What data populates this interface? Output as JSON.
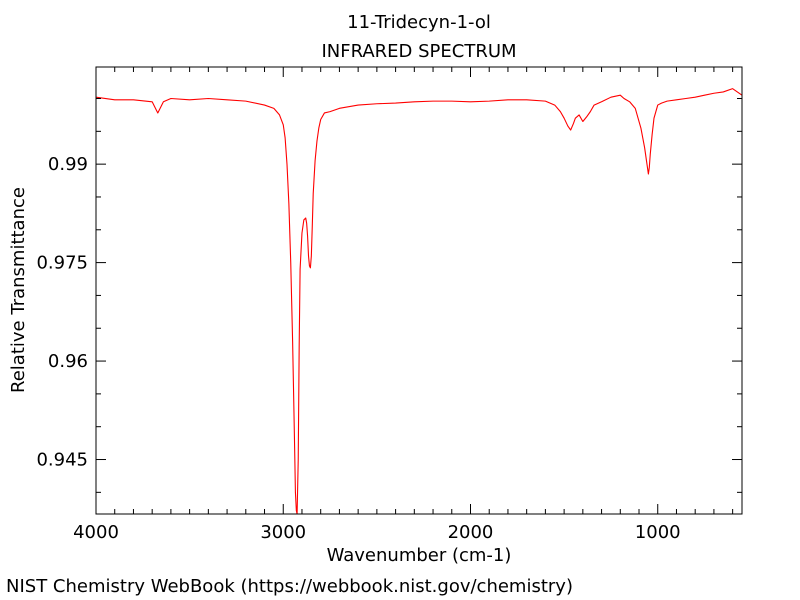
{
  "credit": "NIST Chemistry WebBook (https://webbook.nist.gov/chemistry)",
  "chart_data": {
    "type": "line",
    "title": "11-Tridecyn-1-ol",
    "subtitle": "INFRARED SPECTRUM",
    "xlabel": "Wavenumber (cm-1)",
    "ylabel": "Relative Transmittance",
    "xlim": [
      4000,
      550
    ],
    "ylim": [
      0.9367,
      1.0048
    ],
    "x_ticks": [
      4000,
      3000,
      2000,
      1000
    ],
    "y_ticks": [
      0.99,
      0.975,
      0.96,
      0.945
    ],
    "x_tick_labels": [
      "4000",
      "3000",
      "2000",
      "1000"
    ],
    "y_tick_labels": [
      "0.99",
      "0.975",
      "0.96",
      "0.945"
    ],
    "grid": false,
    "color": "#ff0000",
    "series": [
      {
        "x": [
          4000,
          3900,
          3800,
          3700,
          3670,
          3640,
          3600,
          3500,
          3400,
          3300,
          3200,
          3100,
          3050,
          3020,
          3000,
          2990,
          2980,
          2970,
          2960,
          2950,
          2940,
          2935,
          2930,
          2926,
          2920,
          2915,
          2910,
          2900,
          2890,
          2880,
          2875,
          2870,
          2865,
          2860,
          2855,
          2850,
          2845,
          2840,
          2830,
          2820,
          2810,
          2800,
          2780,
          2750,
          2700,
          2600,
          2500,
          2400,
          2300,
          2200,
          2100,
          2000,
          1900,
          1800,
          1700,
          1600,
          1550,
          1520,
          1500,
          1480,
          1465,
          1450,
          1440,
          1420,
          1400,
          1380,
          1360,
          1340,
          1300,
          1250,
          1200,
          1180,
          1150,
          1120,
          1100,
          1090,
          1080,
          1070,
          1060,
          1055,
          1050,
          1045,
          1040,
          1030,
          1020,
          1000,
          980,
          950,
          900,
          850,
          800,
          750,
          700,
          650,
          600,
          550
        ],
        "y": [
          1.0002,
          0.9998,
          0.9998,
          0.9995,
          0.9978,
          0.9995,
          1.0,
          0.9998,
          1.0,
          0.9998,
          0.9996,
          0.999,
          0.9985,
          0.9975,
          0.996,
          0.994,
          0.99,
          0.984,
          0.975,
          0.963,
          0.948,
          0.94,
          0.9372,
          0.9367,
          0.945,
          0.962,
          0.974,
          0.9795,
          0.9815,
          0.9818,
          0.981,
          0.979,
          0.976,
          0.9745,
          0.9742,
          0.976,
          0.9805,
          0.9855,
          0.9905,
          0.9935,
          0.9955,
          0.9968,
          0.9978,
          0.998,
          0.9985,
          0.999,
          0.9992,
          0.9993,
          0.9995,
          0.9996,
          0.9996,
          0.9995,
          0.9996,
          0.9998,
          0.9998,
          0.9996,
          0.999,
          0.998,
          0.997,
          0.9958,
          0.9952,
          0.9962,
          0.997,
          0.9975,
          0.9965,
          0.9972,
          0.998,
          0.999,
          0.9995,
          1.0002,
          1.0005,
          1.0,
          0.9995,
          0.9985,
          0.9965,
          0.9955,
          0.994,
          0.9925,
          0.9905,
          0.9895,
          0.9885,
          0.9895,
          0.9915,
          0.9945,
          0.997,
          0.999,
          0.9993,
          0.9996,
          0.9998,
          1.0,
          1.0002,
          1.0005,
          1.0008,
          1.001,
          1.0015,
          1.0005
        ]
      }
    ]
  }
}
